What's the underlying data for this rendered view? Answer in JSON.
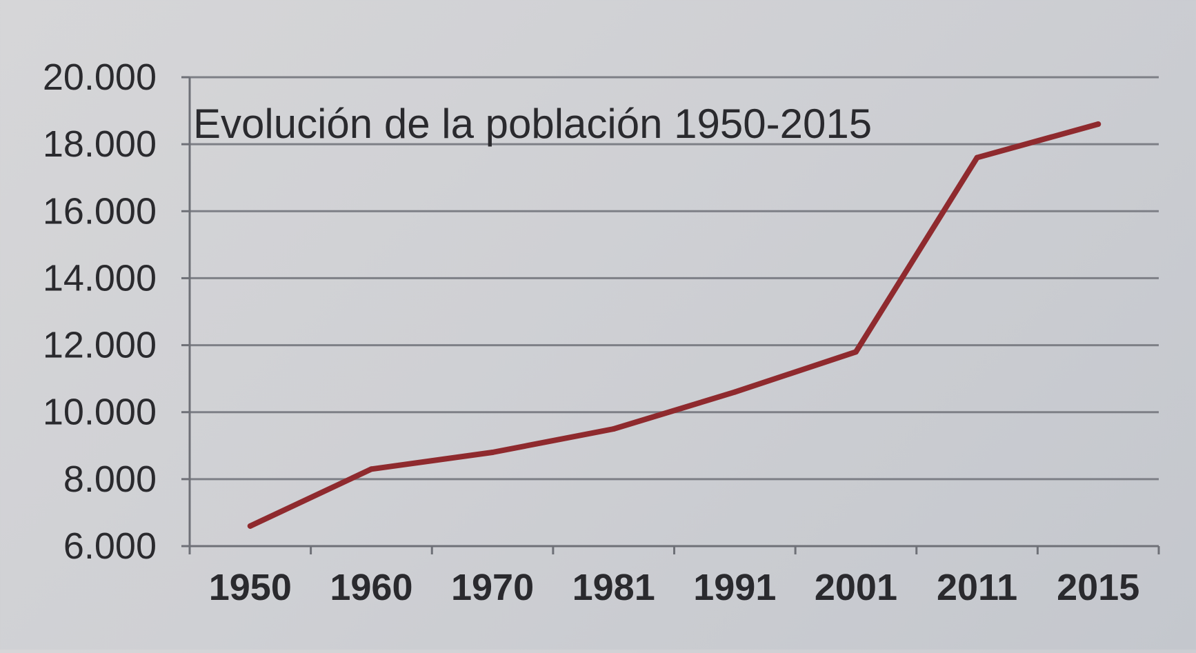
{
  "chart_data": {
    "type": "line",
    "title": "Evolución de la población 1950-2015",
    "categories": [
      "1950",
      "1960",
      "1970",
      "1981",
      "1991",
      "2001",
      "2011",
      "2015"
    ],
    "series": [
      {
        "values": [
          6600,
          8300,
          8800,
          9500,
          10600,
          11800,
          17600,
          18600
        ]
      }
    ],
    "y_ticks": [
      "6.000",
      "8.000",
      "10.000",
      "12.000",
      "14.000",
      "16.000",
      "18.000",
      "20.000"
    ],
    "ylim": [
      6000,
      20000
    ],
    "grid": true,
    "legend": "none",
    "colors": {
      "line": "#8f2a2e",
      "grid": "#7d7f86",
      "axis": "#6e7077",
      "text": "#2a2a2e"
    }
  }
}
